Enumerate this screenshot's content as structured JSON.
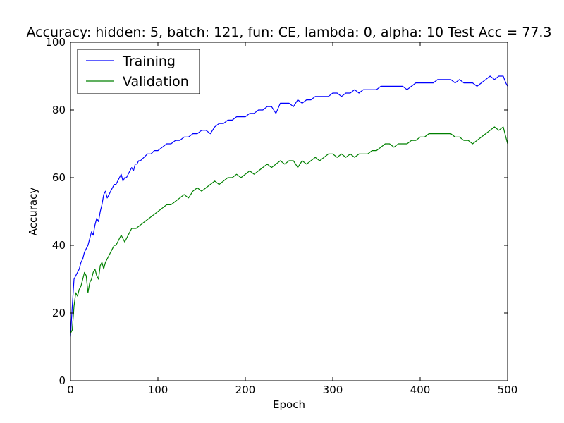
{
  "chart_data": {
    "type": "line",
    "title": "Accuracy: hidden: 5, batch: 121, fun: CE, lambda: 0, alpha: 10  Test Acc = 77.3",
    "xlabel": "Epoch",
    "ylabel": "Accuracy",
    "xlim": [
      0,
      500
    ],
    "ylim": [
      0,
      100
    ],
    "xticks": [
      0,
      100,
      200,
      300,
      400,
      500
    ],
    "yticks": [
      0,
      20,
      40,
      60,
      80,
      100
    ],
    "xtick_labels": [
      "0",
      "100",
      "200",
      "300",
      "400",
      "500"
    ],
    "ytick_labels": [
      "0",
      "20",
      "40",
      "60",
      "80",
      "100"
    ],
    "grid": false,
    "legend_position": "upper-left",
    "series": [
      {
        "name": "Training",
        "color": "#0000ff",
        "x": [
          0,
          2,
          4,
          6,
          8,
          10,
          12,
          14,
          16,
          18,
          20,
          22,
          24,
          26,
          28,
          30,
          32,
          34,
          36,
          38,
          40,
          42,
          44,
          46,
          48,
          50,
          52,
          54,
          56,
          58,
          60,
          62,
          64,
          66,
          68,
          70,
          72,
          74,
          76,
          78,
          80,
          84,
          88,
          92,
          96,
          100,
          105,
          110,
          115,
          120,
          125,
          130,
          135,
          140,
          145,
          150,
          155,
          160,
          165,
          170,
          175,
          180,
          185,
          190,
          195,
          200,
          205,
          210,
          215,
          220,
          225,
          230,
          235,
          240,
          245,
          250,
          255,
          260,
          265,
          270,
          275,
          280,
          285,
          290,
          295,
          300,
          305,
          310,
          315,
          320,
          325,
          330,
          335,
          340,
          345,
          350,
          355,
          360,
          365,
          370,
          375,
          380,
          385,
          390,
          395,
          400,
          405,
          410,
          415,
          420,
          425,
          430,
          435,
          440,
          445,
          450,
          455,
          460,
          465,
          470,
          475,
          480,
          485,
          490,
          495,
          498,
          500
        ],
        "y": [
          13,
          22,
          30,
          31,
          32,
          33,
          35,
          36,
          38,
          39,
          40,
          42,
          44,
          43,
          46,
          48,
          47,
          50,
          52,
          55,
          56,
          54,
          55,
          56,
          57,
          58,
          58,
          59,
          60,
          61,
          59,
          60,
          60,
          61,
          62,
          63,
          62,
          64,
          64,
          65,
          65,
          66,
          67,
          67,
          68,
          68,
          69,
          70,
          70,
          71,
          71,
          72,
          72,
          73,
          73,
          74,
          74,
          73,
          75,
          76,
          76,
          77,
          77,
          78,
          78,
          78,
          79,
          79,
          80,
          80,
          81,
          81,
          79,
          82,
          82,
          82,
          81,
          83,
          82,
          83,
          83,
          84,
          84,
          84,
          84,
          85,
          85,
          84,
          85,
          85,
          86,
          85,
          86,
          86,
          86,
          86,
          87,
          87,
          87,
          87,
          87,
          87,
          86,
          87,
          88,
          88,
          88,
          88,
          88,
          89,
          89,
          89,
          89,
          88,
          89,
          88,
          88,
          88,
          87,
          88,
          89,
          90,
          89,
          90,
          90,
          88,
          87
        ]
      },
      {
        "name": "Validation",
        "color": "#008000",
        "x": [
          0,
          2,
          4,
          6,
          8,
          10,
          12,
          14,
          16,
          18,
          20,
          22,
          24,
          26,
          28,
          30,
          32,
          34,
          36,
          38,
          40,
          42,
          44,
          46,
          48,
          50,
          52,
          54,
          56,
          58,
          60,
          62,
          64,
          66,
          68,
          70,
          75,
          80,
          85,
          90,
          95,
          100,
          105,
          110,
          115,
          120,
          125,
          130,
          135,
          140,
          145,
          150,
          155,
          160,
          165,
          170,
          175,
          180,
          185,
          190,
          195,
          200,
          205,
          210,
          215,
          220,
          225,
          230,
          235,
          240,
          245,
          250,
          255,
          260,
          265,
          270,
          275,
          280,
          285,
          290,
          295,
          300,
          305,
          310,
          315,
          320,
          325,
          330,
          335,
          340,
          345,
          350,
          355,
          360,
          365,
          370,
          375,
          380,
          385,
          390,
          395,
          400,
          405,
          410,
          415,
          420,
          425,
          430,
          435,
          440,
          445,
          450,
          455,
          460,
          465,
          470,
          475,
          480,
          485,
          490,
          495,
          498,
          500
        ],
        "y": [
          14,
          15,
          22,
          26,
          25,
          27,
          28,
          30,
          32,
          31,
          26,
          29,
          30,
          32,
          33,
          31,
          30,
          34,
          35,
          33,
          35,
          36,
          37,
          38,
          39,
          40,
          40,
          41,
          42,
          43,
          42,
          41,
          42,
          43,
          44,
          45,
          45,
          46,
          47,
          48,
          49,
          50,
          51,
          52,
          52,
          53,
          54,
          55,
          54,
          56,
          57,
          56,
          57,
          58,
          59,
          58,
          59,
          60,
          60,
          61,
          60,
          61,
          62,
          61,
          62,
          63,
          64,
          63,
          64,
          65,
          64,
          65,
          65,
          63,
          65,
          64,
          65,
          66,
          65,
          66,
          67,
          67,
          66,
          67,
          66,
          67,
          66,
          67,
          67,
          67,
          68,
          68,
          69,
          70,
          70,
          69,
          70,
          70,
          70,
          71,
          71,
          72,
          72,
          73,
          73,
          73,
          73,
          73,
          73,
          72,
          72,
          71,
          71,
          70,
          71,
          72,
          73,
          74,
          75,
          74,
          75,
          72,
          70
        ]
      }
    ]
  }
}
